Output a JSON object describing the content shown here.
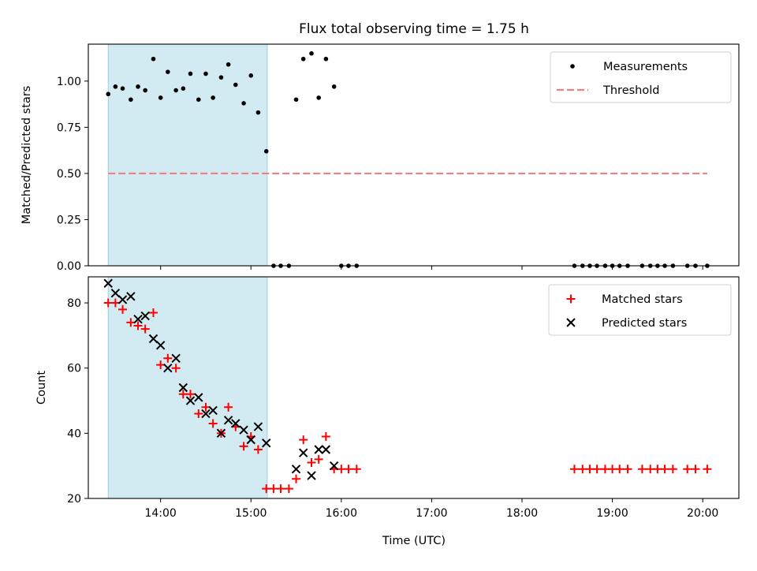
{
  "chart_data": {
    "title": "Flux total observing time = 1.75 h",
    "xlabel": "Time (UTC)",
    "x_units": "hours (UTC)",
    "xlim": [
      13.2,
      20.4
    ],
    "x_ticks": [
      {
        "value": 14,
        "label": "14:00"
      },
      {
        "value": 15,
        "label": "15:00"
      },
      {
        "value": 16,
        "label": "16:00"
      },
      {
        "value": 17,
        "label": "17:00"
      },
      {
        "value": 18,
        "label": "18:00"
      },
      {
        "value": 19,
        "label": "19:00"
      },
      {
        "value": 20,
        "label": "20:00"
      }
    ],
    "highlight_span": {
      "start": 13.42,
      "end": 15.18,
      "color": "#add8e6"
    },
    "panels": [
      {
        "type": "scatter",
        "name": "ratio",
        "ylabel": "Matched/Predicted stars",
        "ylim": [
          0,
          1.2
        ],
        "y_ticks": [
          {
            "value": 0,
            "label": "0.00"
          },
          {
            "value": 0.25,
            "label": "0.25"
          },
          {
            "value": 0.5,
            "label": "0.50"
          },
          {
            "value": 0.75,
            "label": "0.75"
          },
          {
            "value": 1.0,
            "label": "1.00"
          }
        ],
        "legend_position": "upper-right",
        "series": [
          {
            "name": "Measurements",
            "marker": "dot",
            "color": "#000000",
            "points": [
              [
                13.42,
                0.93
              ],
              [
                13.5,
                0.97
              ],
              [
                13.58,
                0.96
              ],
              [
                13.67,
                0.9
              ],
              [
                13.75,
                0.97
              ],
              [
                13.83,
                0.95
              ],
              [
                13.92,
                1.12
              ],
              [
                14.0,
                0.91
              ],
              [
                14.08,
                1.05
              ],
              [
                14.17,
                0.95
              ],
              [
                14.25,
                0.96
              ],
              [
                14.33,
                1.04
              ],
              [
                14.42,
                0.9
              ],
              [
                14.5,
                1.04
              ],
              [
                14.58,
                0.91
              ],
              [
                14.67,
                1.02
              ],
              [
                14.75,
                1.09
              ],
              [
                14.83,
                0.98
              ],
              [
                14.92,
                0.88
              ],
              [
                15.0,
                1.03
              ],
              [
                15.08,
                0.83
              ],
              [
                15.17,
                0.62
              ],
              [
                15.25,
                0.0
              ],
              [
                15.33,
                0.0
              ],
              [
                15.42,
                0.0
              ],
              [
                15.5,
                0.9
              ],
              [
                15.58,
                1.12
              ],
              [
                15.67,
                1.15
              ],
              [
                15.75,
                0.91
              ],
              [
                15.83,
                1.12
              ],
              [
                15.92,
                0.97
              ],
              [
                16.0,
                0.0
              ],
              [
                16.08,
                0.0
              ],
              [
                16.17,
                0.0
              ],
              [
                18.58,
                0.0
              ],
              [
                18.67,
                0.0
              ],
              [
                18.75,
                0.0
              ],
              [
                18.83,
                0.0
              ],
              [
                18.92,
                0.0
              ],
              [
                19.0,
                0.0
              ],
              [
                19.08,
                0.0
              ],
              [
                19.17,
                0.0
              ],
              [
                19.33,
                0.0
              ],
              [
                19.42,
                0.0
              ],
              [
                19.5,
                0.0
              ],
              [
                19.58,
                0.0
              ],
              [
                19.67,
                0.0
              ],
              [
                19.83,
                0.0
              ],
              [
                19.92,
                0.0
              ],
              [
                20.05,
                0.0
              ]
            ]
          },
          {
            "name": "Threshold",
            "marker": "dashed-line",
            "color": "#f08080",
            "points": [
              [
                13.42,
                0.5
              ],
              [
                20.05,
                0.5
              ]
            ]
          }
        ]
      },
      {
        "type": "scatter",
        "name": "counts",
        "ylabel": "Count",
        "ylim": [
          20,
          88
        ],
        "y_ticks": [
          {
            "value": 20,
            "label": "20"
          },
          {
            "value": 40,
            "label": "40"
          },
          {
            "value": 60,
            "label": "60"
          },
          {
            "value": 80,
            "label": "80"
          }
        ],
        "legend_position": "upper-right",
        "series": [
          {
            "name": "Matched stars",
            "marker": "plus",
            "color": "#ff0000",
            "points": [
              [
                13.42,
                80
              ],
              [
                13.5,
                80
              ],
              [
                13.58,
                78
              ],
              [
                13.67,
                74
              ],
              [
                13.75,
                73
              ],
              [
                13.83,
                72
              ],
              [
                13.92,
                77
              ],
              [
                14.0,
                61
              ],
              [
                14.08,
                63
              ],
              [
                14.17,
                60
              ],
              [
                14.25,
                52
              ],
              [
                14.33,
                52
              ],
              [
                14.42,
                46
              ],
              [
                14.5,
                48
              ],
              [
                14.58,
                43
              ],
              [
                14.67,
                40
              ],
              [
                14.75,
                48
              ],
              [
                14.83,
                42
              ],
              [
                14.92,
                36
              ],
              [
                15.0,
                39
              ],
              [
                15.08,
                35
              ],
              [
                15.17,
                23
              ],
              [
                15.25,
                23
              ],
              [
                15.33,
                23
              ],
              [
                15.42,
                23
              ],
              [
                15.5,
                26
              ],
              [
                15.58,
                38
              ],
              [
                15.67,
                31
              ],
              [
                15.75,
                32
              ],
              [
                15.83,
                39
              ],
              [
                15.92,
                29
              ],
              [
                16.0,
                29
              ],
              [
                16.08,
                29
              ],
              [
                16.17,
                29
              ],
              [
                18.58,
                29
              ],
              [
                18.67,
                29
              ],
              [
                18.75,
                29
              ],
              [
                18.83,
                29
              ],
              [
                18.92,
                29
              ],
              [
                19.0,
                29
              ],
              [
                19.08,
                29
              ],
              [
                19.17,
                29
              ],
              [
                19.33,
                29
              ],
              [
                19.42,
                29
              ],
              [
                19.5,
                29
              ],
              [
                19.58,
                29
              ],
              [
                19.67,
                29
              ],
              [
                19.83,
                29
              ],
              [
                19.92,
                29
              ],
              [
                20.05,
                29
              ]
            ]
          },
          {
            "name": "Predicted stars",
            "marker": "x",
            "color": "#000000",
            "points": [
              [
                13.42,
                86
              ],
              [
                13.5,
                83
              ],
              [
                13.58,
                81
              ],
              [
                13.67,
                82
              ],
              [
                13.75,
                75
              ],
              [
                13.83,
                76
              ],
              [
                13.92,
                69
              ],
              [
                14.0,
                67
              ],
              [
                14.08,
                60
              ],
              [
                14.17,
                63
              ],
              [
                14.25,
                54
              ],
              [
                14.33,
                50
              ],
              [
                14.42,
                51
              ],
              [
                14.5,
                46
              ],
              [
                14.58,
                47
              ],
              [
                14.67,
                40
              ],
              [
                14.75,
                44
              ],
              [
                14.83,
                43
              ],
              [
                14.92,
                41
              ],
              [
                15.0,
                38
              ],
              [
                15.08,
                42
              ],
              [
                15.17,
                37
              ],
              [
                15.5,
                29
              ],
              [
                15.58,
                34
              ],
              [
                15.67,
                27
              ],
              [
                15.75,
                35
              ],
              [
                15.83,
                35
              ],
              [
                15.92,
                30
              ]
            ]
          }
        ]
      }
    ]
  }
}
